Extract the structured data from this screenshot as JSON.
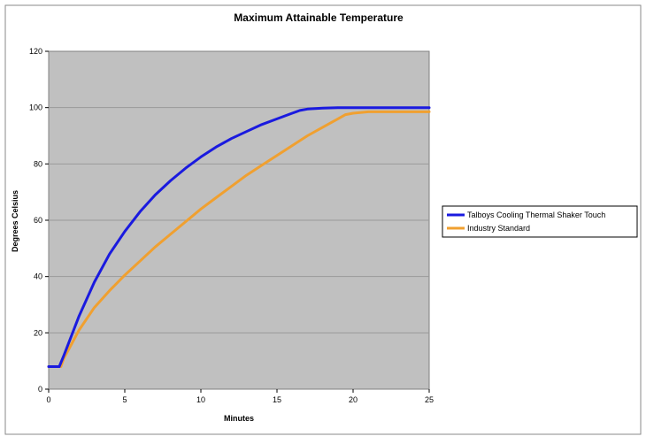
{
  "chart_data": {
    "type": "line",
    "title": "Maximum Attainable Temperature",
    "xlabel": "Minutes",
    "ylabel": "Degrees Celsius",
    "xlim": [
      0,
      25
    ],
    "ylim": [
      0,
      120
    ],
    "xticks": [
      0,
      5,
      10,
      15,
      20,
      25
    ],
    "yticks": [
      0,
      20,
      40,
      60,
      80,
      100,
      120
    ],
    "grid": true,
    "legend_position": "right",
    "plot_background": "#c0c0c0",
    "series": [
      {
        "name": "Talboys Cooling Thermal Shaker Touch",
        "color": "#1a1adf",
        "x": [
          0,
          0.5,
          0.7,
          1,
          1.5,
          2,
          2.5,
          3,
          4,
          5,
          6,
          7,
          8,
          9,
          10,
          11,
          12,
          13,
          14,
          15,
          16,
          16.5,
          17,
          18,
          19,
          20,
          22,
          25
        ],
        "y": [
          8,
          8,
          8,
          12,
          19,
          26,
          32,
          38,
          48,
          56,
          63,
          69,
          74,
          78.5,
          82.5,
          86,
          89,
          91.5,
          94,
          96,
          98,
          99,
          99.5,
          99.8,
          100,
          100,
          100,
          100
        ]
      },
      {
        "name": "Industry Standard",
        "color": "#f0a030",
        "x": [
          0,
          0.5,
          0.8,
          1,
          1.5,
          2,
          3,
          4,
          5,
          6,
          7,
          8,
          9,
          10,
          11,
          12,
          13,
          14,
          15,
          16,
          17,
          18,
          19,
          19.5,
          20,
          21,
          22,
          25
        ],
        "y": [
          8,
          8,
          8,
          11,
          16,
          21,
          29,
          35,
          40.5,
          45.5,
          50.5,
          55,
          59.5,
          64,
          68,
          72,
          76,
          79.5,
          83,
          86.5,
          90,
          93,
          96,
          97.5,
          98,
          98.5,
          98.5,
          98.5
        ]
      }
    ]
  }
}
